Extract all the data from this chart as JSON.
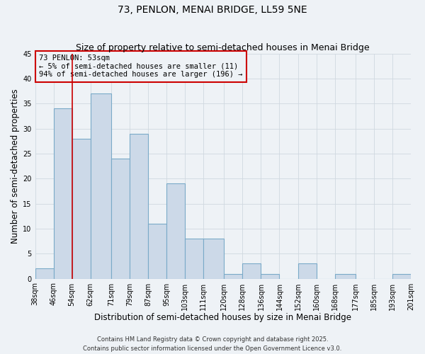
{
  "title": "73, PENLON, MENAI BRIDGE, LL59 5NE",
  "subtitle": "Size of property relative to semi-detached houses in Menai Bridge",
  "xlabel": "Distribution of semi-detached houses by size in Menai Bridge",
  "ylabel": "Number of semi-detached properties",
  "bin_labels": [
    "38sqm",
    "46sqm",
    "54sqm",
    "62sqm",
    "71sqm",
    "79sqm",
    "87sqm",
    "95sqm",
    "103sqm",
    "111sqm",
    "120sqm",
    "128sqm",
    "136sqm",
    "144sqm",
    "152sqm",
    "160sqm",
    "168sqm",
    "177sqm",
    "185sqm",
    "193sqm",
    "201sqm"
  ],
  "bin_edges": [
    38,
    46,
    54,
    62,
    71,
    79,
    87,
    95,
    103,
    111,
    120,
    128,
    136,
    144,
    152,
    160,
    168,
    177,
    185,
    193,
    201
  ],
  "counts": [
    2,
    34,
    28,
    37,
    24,
    29,
    11,
    19,
    8,
    8,
    1,
    3,
    1,
    0,
    3,
    0,
    1,
    0,
    0,
    1
  ],
  "bar_facecolor": "#ccd9e8",
  "bar_edgecolor": "#7aaac8",
  "grid_color": "#d0d8e0",
  "background_color": "#eef2f6",
  "vline_x": 54,
  "vline_color": "#cc0000",
  "annotation_title": "73 PENLON: 53sqm",
  "annotation_line1": "← 5% of semi-detached houses are smaller (11)",
  "annotation_line2": "94% of semi-detached houses are larger (196) →",
  "annotation_box_edgecolor": "#cc0000",
  "ylim": [
    0,
    45
  ],
  "yticks": [
    0,
    5,
    10,
    15,
    20,
    25,
    30,
    35,
    40,
    45
  ],
  "footer1": "Contains HM Land Registry data © Crown copyright and database right 2025.",
  "footer2": "Contains public sector information licensed under the Open Government Licence v3.0.",
  "title_fontsize": 10,
  "subtitle_fontsize": 9,
  "axis_label_fontsize": 8.5,
  "tick_fontsize": 7,
  "annotation_fontsize": 7.5,
  "footer_fontsize": 6
}
